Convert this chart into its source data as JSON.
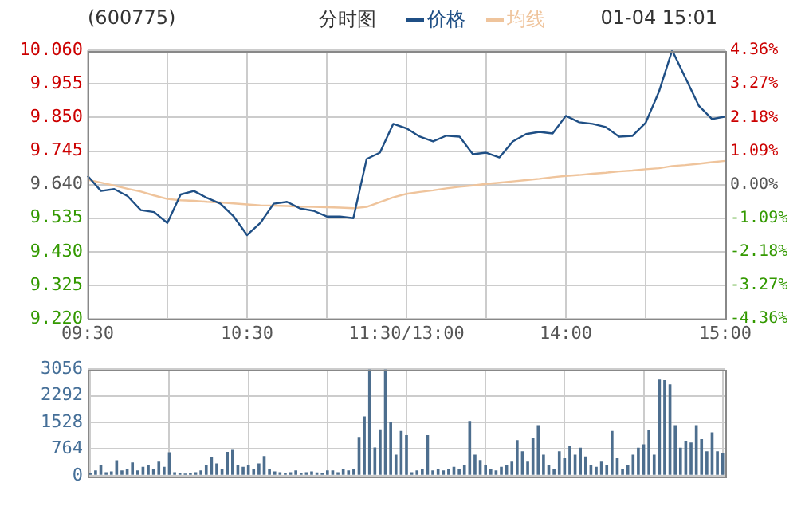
{
  "chart_data": [
    {
      "type": "line",
      "title": "(600775)",
      "subtitle": "分时图",
      "annotations": [
        "01-04 15:01"
      ],
      "legend": "top",
      "grid": true,
      "marker": "none",
      "line_style": "solid",
      "categories": [
        "09:30",
        null,
        null,
        null,
        null,
        null,
        null,
        null,
        null,
        null,
        null,
        null,
        "10:30",
        null,
        null,
        null,
        null,
        null,
        null,
        null,
        null,
        null,
        null,
        null,
        "11:30/13:00",
        null,
        null,
        null,
        null,
        null,
        null,
        null,
        null,
        null,
        null,
        null,
        "14:00",
        null,
        null,
        null,
        null,
        null,
        null,
        null,
        null,
        null,
        null,
        null,
        "15:00"
      ],
      "ylim": [
        9.22,
        10.06
      ],
      "yticks": [
        {
          "value": 9.22,
          "label": "9.220"
        },
        {
          "value": 9.325,
          "label": "9.325"
        },
        {
          "value": 9.43,
          "label": "9.430"
        },
        {
          "value": 9.535,
          "label": "9.535"
        },
        {
          "value": 9.64,
          "label": "9.640"
        },
        {
          "value": 9.745,
          "label": "9.745"
        },
        {
          "value": 9.85,
          "label": "9.850"
        },
        {
          "value": 9.955,
          "label": "9.955"
        },
        {
          "value": 10.06,
          "label": "10.060"
        }
      ],
      "y2lim": [
        -4.36,
        4.36
      ],
      "y2ticks": [
        {
          "value": -4.36,
          "label": "-4.36%"
        },
        {
          "value": -3.27,
          "label": "-3.27%"
        },
        {
          "value": -2.18,
          "label": "-2.18%"
        },
        {
          "value": -1.09,
          "label": "-1.09%"
        },
        {
          "value": 0,
          "label": "0.00%"
        },
        {
          "value": 1.09,
          "label": "1.09%"
        },
        {
          "value": 2.18,
          "label": "2.18%"
        },
        {
          "value": 3.27,
          "label": "3.27%"
        },
        {
          "value": 4.36,
          "label": "4.36%"
        }
      ],
      "series": [
        {
          "name": "价格",
          "color": "#1f4f85",
          "values": [
            9.667,
            9.62,
            9.626,
            9.604,
            9.56,
            9.554,
            9.52,
            9.609,
            9.62,
            9.598,
            9.58,
            9.54,
            9.482,
            9.52,
            9.58,
            9.586,
            9.565,
            9.558,
            9.54,
            9.54,
            9.535,
            9.72,
            9.74,
            9.83,
            9.816,
            9.79,
            9.775,
            9.793,
            9.79,
            9.735,
            9.74,
            9.725,
            9.775,
            9.798,
            9.805,
            9.8,
            9.855,
            9.835,
            9.83,
            9.82,
            9.79,
            9.792,
            9.833,
            9.93,
            10.06,
            9.974,
            9.887,
            9.845,
            9.853
          ]
        },
        {
          "name": "均线",
          "color": "#efc49c",
          "values": [
            9.655,
            9.646,
            9.637,
            9.627,
            9.618,
            9.606,
            9.595,
            9.591,
            9.589,
            9.586,
            9.584,
            9.581,
            9.578,
            9.575,
            9.574,
            9.573,
            9.571,
            9.57,
            9.569,
            9.568,
            9.566,
            9.57,
            9.585,
            9.6,
            9.611,
            9.617,
            9.622,
            9.628,
            9.633,
            9.637,
            9.642,
            9.646,
            9.65,
            9.654,
            9.658,
            9.663,
            9.667,
            9.67,
            9.674,
            9.677,
            9.681,
            9.684,
            9.688,
            9.691,
            9.698,
            9.701,
            9.705,
            9.71,
            9.714
          ]
        }
      ]
    },
    {
      "type": "bar",
      "grid": true,
      "tick_labels": "y",
      "categories": [
        null,
        null,
        null,
        null,
        null,
        null,
        null,
        null,
        null,
        null,
        null,
        null,
        null,
        null,
        null,
        null,
        null,
        null,
        null,
        null,
        null,
        null,
        null,
        null,
        null,
        null,
        null,
        null,
        null,
        null,
        null,
        null,
        null,
        null,
        null,
        null,
        null,
        null,
        null,
        null,
        null,
        null,
        null,
        null,
        null,
        null,
        null,
        null,
        null,
        null,
        null,
        null,
        null,
        null,
        null,
        null,
        null,
        null,
        null,
        null,
        null,
        null,
        null,
        null,
        null,
        null,
        null,
        null,
        null,
        null,
        null,
        null,
        null,
        null,
        null,
        null,
        null,
        null,
        null,
        null,
        null,
        null,
        null,
        null,
        null,
        null,
        null,
        null,
        null,
        null,
        null,
        null,
        null,
        null,
        null,
        null,
        null,
        null,
        null,
        null,
        null,
        null,
        null,
        null,
        null,
        null,
        null,
        null,
        null,
        null,
        null,
        null,
        null,
        null,
        null,
        null,
        null,
        null,
        null,
        null,
        null
      ],
      "ylim": [
        0,
        3056
      ],
      "yticks": [
        0,
        764,
        1528,
        2292,
        3056
      ],
      "series": [
        {
          "color": "#4d6e8e",
          "values": [
            80,
            150,
            300,
            100,
            120,
            440,
            150,
            200,
            380,
            150,
            250,
            300,
            200,
            400,
            250,
            670,
            100,
            80,
            60,
            80,
            100,
            150,
            300,
            520,
            350,
            200,
            680,
            740,
            300,
            250,
            300,
            200,
            350,
            560,
            180,
            120,
            100,
            80,
            100,
            150,
            80,
            100,
            120,
            90,
            80,
            150,
            150,
            100,
            180,
            150,
            200,
            1110,
            1700,
            3050,
            810,
            1330,
            3050,
            1550,
            600,
            1280,
            1160,
            100,
            150,
            200,
            1160,
            150,
            200,
            150,
            180,
            250,
            200,
            300,
            1570,
            600,
            450,
            300,
            200,
            150,
            250,
            300,
            400,
            1020,
            700,
            400,
            1090,
            1450,
            600,
            300,
            200,
            700,
            500,
            850,
            600,
            800,
            550,
            300,
            250,
            400,
            300,
            1280,
            500,
            200,
            300,
            600,
            800,
            900,
            1310,
            600,
            2760,
            2740,
            2620,
            1450,
            800,
            1000,
            950,
            1450,
            1050,
            700,
            1240,
            700,
            650
          ]
        }
      ]
    }
  ]
}
